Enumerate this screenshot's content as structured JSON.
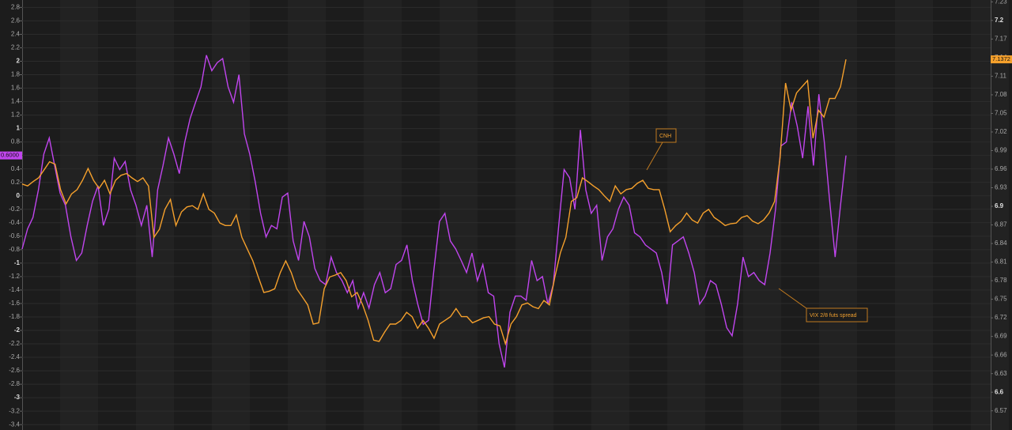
{
  "chart_data": {
    "type": "line",
    "ylim": [
      -3.48,
      2.91
    ],
    "yticks": [
      -3.4,
      -3.2,
      -3,
      -2.8,
      -2.6,
      -2.4,
      -2.2,
      -2,
      -1.8,
      -1.6,
      -1.4,
      -1.2,
      -1,
      -0.8,
      -0.6,
      -0.4,
      -0.2,
      0,
      0.2,
      0.4,
      0.6,
      0.8,
      1,
      1.2,
      1.4,
      1.6,
      1.8,
      2,
      2.2,
      2.4,
      2.6,
      2.8
    ],
    "y2lim": [
      6.539,
      7.233
    ],
    "y2ticks": [
      6.57,
      6.6,
      6.63,
      6.66,
      6.69,
      6.72,
      6.75,
      6.78,
      6.81,
      6.84,
      6.87,
      6.9,
      6.93,
      6.96,
      6.99,
      7.02,
      7.05,
      7.08,
      7.11,
      7.14,
      7.17,
      7.2,
      7.23
    ],
    "grid": true,
    "series": [
      {
        "name": "VIX 2/8 futs spread",
        "color": "#c045ee",
        "last_label": "0.6000",
        "values": [
          -0.79,
          -0.49,
          -0.32,
          0.09,
          0.62,
          0.86,
          0.45,
          0.04,
          -0.14,
          -0.61,
          -0.96,
          -0.85,
          -0.44,
          -0.08,
          0.15,
          -0.44,
          -0.2,
          0.56,
          0.39,
          0.51,
          0.09,
          -0.14,
          -0.44,
          -0.14,
          -0.91,
          0.09,
          0.45,
          0.86,
          0.62,
          0.33,
          0.8,
          1.15,
          1.39,
          1.62,
          2.09,
          1.86,
          1.98,
          2.04,
          1.62,
          1.39,
          1.8,
          0.92,
          0.62,
          0.21,
          -0.26,
          -0.61,
          -0.44,
          -0.49,
          -0.02,
          0.04,
          -0.67,
          -0.96,
          -0.38,
          -0.61,
          -1.08,
          -1.26,
          -1.32,
          -0.91,
          -1.14,
          -1.26,
          -1.44,
          -1.26,
          -1.67,
          -1.44,
          -1.67,
          -1.32,
          -1.14,
          -1.44,
          -1.38,
          -1.02,
          -0.96,
          -0.73,
          -1.26,
          -1.61,
          -1.91,
          -1.85,
          -1.08,
          -0.38,
          -0.26,
          -0.67,
          -0.79,
          -0.96,
          -1.14,
          -0.85,
          -1.26,
          -1.02,
          -1.44,
          -1.49,
          -2.2,
          -2.55,
          -1.73,
          -1.49,
          -1.49,
          -1.55,
          -0.96,
          -1.26,
          -1.2,
          -1.61,
          -1.32,
          -0.44,
          0.39,
          0.27,
          -0.2,
          0.98,
          0.09,
          -0.26,
          -0.14,
          -0.96,
          -0.61,
          -0.49,
          -0.2,
          -0.02,
          -0.14,
          -0.55,
          -0.61,
          -0.73,
          -0.79,
          -0.85,
          -1.14,
          -1.61,
          -0.73,
          -0.67,
          -0.61,
          -0.85,
          -1.14,
          -1.61,
          -1.49,
          -1.26,
          -1.32,
          -1.61,
          -1.96,
          -2.08,
          -1.61,
          -0.91,
          -1.2,
          -1.14,
          -1.26,
          -1.32,
          -0.85,
          -0.2,
          0.74,
          0.8,
          1.39,
          1.04,
          0.56,
          1.33,
          0.45,
          1.51,
          0.8,
          -0.08,
          -0.91,
          -0.14,
          0.6
        ]
      },
      {
        "name": "CNH",
        "color": "#f5a02c",
        "axis": "y2",
        "last_label": "7.1372",
        "values": [
          6.936,
          6.933,
          6.94,
          6.946,
          6.959,
          6.972,
          6.968,
          6.927,
          6.904,
          6.92,
          6.927,
          6.942,
          6.961,
          6.942,
          6.929,
          6.942,
          6.92,
          6.942,
          6.95,
          6.953,
          6.946,
          6.94,
          6.946,
          6.933,
          6.85,
          6.863,
          6.895,
          6.911,
          6.869,
          6.891,
          6.899,
          6.901,
          6.895,
          6.92,
          6.895,
          6.889,
          6.873,
          6.869,
          6.869,
          6.886,
          6.85,
          6.831,
          6.812,
          6.786,
          6.761,
          6.763,
          6.767,
          6.793,
          6.812,
          6.793,
          6.767,
          6.754,
          6.741,
          6.71,
          6.712,
          6.767,
          6.786,
          6.789,
          6.793,
          6.78,
          6.754,
          6.761,
          6.741,
          6.716,
          6.684,
          6.682,
          6.697,
          6.71,
          6.71,
          6.716,
          6.729,
          6.722,
          6.703,
          6.716,
          6.703,
          6.687,
          6.71,
          6.716,
          6.722,
          6.735,
          6.722,
          6.722,
          6.712,
          6.716,
          6.72,
          6.722,
          6.71,
          6.707,
          6.678,
          6.71,
          6.722,
          6.741,
          6.744,
          6.738,
          6.735,
          6.748,
          6.741,
          6.786,
          6.825,
          6.85,
          6.908,
          6.914,
          6.946,
          6.94,
          6.933,
          6.927,
          6.917,
          6.908,
          6.933,
          6.92,
          6.927,
          6.929,
          6.937,
          6.942,
          6.929,
          6.927,
          6.927,
          6.895,
          6.859,
          6.869,
          6.876,
          6.889,
          6.878,
          6.873,
          6.889,
          6.895,
          6.882,
          6.876,
          6.869,
          6.872,
          6.873,
          6.882,
          6.885,
          6.876,
          6.872,
          6.878,
          6.889,
          6.908,
          6.978,
          7.099,
          7.055,
          7.083,
          7.093,
          7.103,
          7.01,
          7.055,
          7.044,
          7.074,
          7.074,
          7.093,
          7.1372
        ]
      }
    ]
  }
}
